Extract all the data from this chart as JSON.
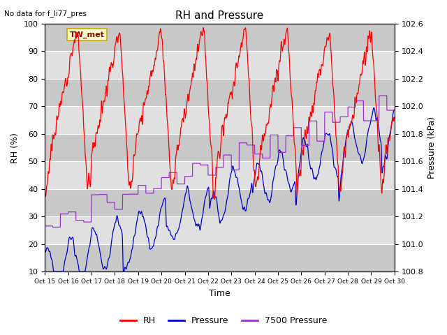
{
  "title": "RH and Pressure",
  "top_left_text": "No data for f_li77_pres",
  "annotation_box_text": "TW_met",
  "xlabel": "Time",
  "ylabel_left": "RH (%)",
  "ylabel_right": "Pressure (kPa)",
  "ylim_left": [
    10,
    100
  ],
  "ylim_right": [
    100.8,
    102.6
  ],
  "xtick_labels": [
    "Oct 15",
    "Oct 16",
    "Oct 17",
    "Oct 18",
    "Oct 19",
    "Oct 20",
    "Oct 21",
    "Oct 22",
    "Oct 23",
    "Oct 24",
    "Oct 25",
    "Oct 26",
    "Oct 27",
    "Oct 28",
    "Oct 29",
    "Oct 30"
  ],
  "legend_labels": [
    "RH",
    "Pressure",
    "7500 Pressure"
  ],
  "legend_colors": [
    "#ff0000",
    "#0000cc",
    "#9933cc"
  ],
  "rh_color": "#ff0000",
  "pressure_color": "#0000cc",
  "pressure7500_color": "#9933cc",
  "background_color": "#ffffff",
  "plot_bg_color": "#d8d8d8",
  "grid_color": "#ffffff",
  "annotation_box_color": "#ffffcc",
  "annotation_box_edge": "#ccaa00",
  "band_colors": [
    "#c8c8c8",
    "#e0e0e0"
  ],
  "yticks": [
    10,
    20,
    30,
    40,
    50,
    60,
    70,
    80,
    90,
    100
  ],
  "right_yticks": [
    100.8,
    101.0,
    101.2,
    101.4,
    101.6,
    101.8,
    102.0,
    102.2,
    102.4,
    102.6
  ]
}
